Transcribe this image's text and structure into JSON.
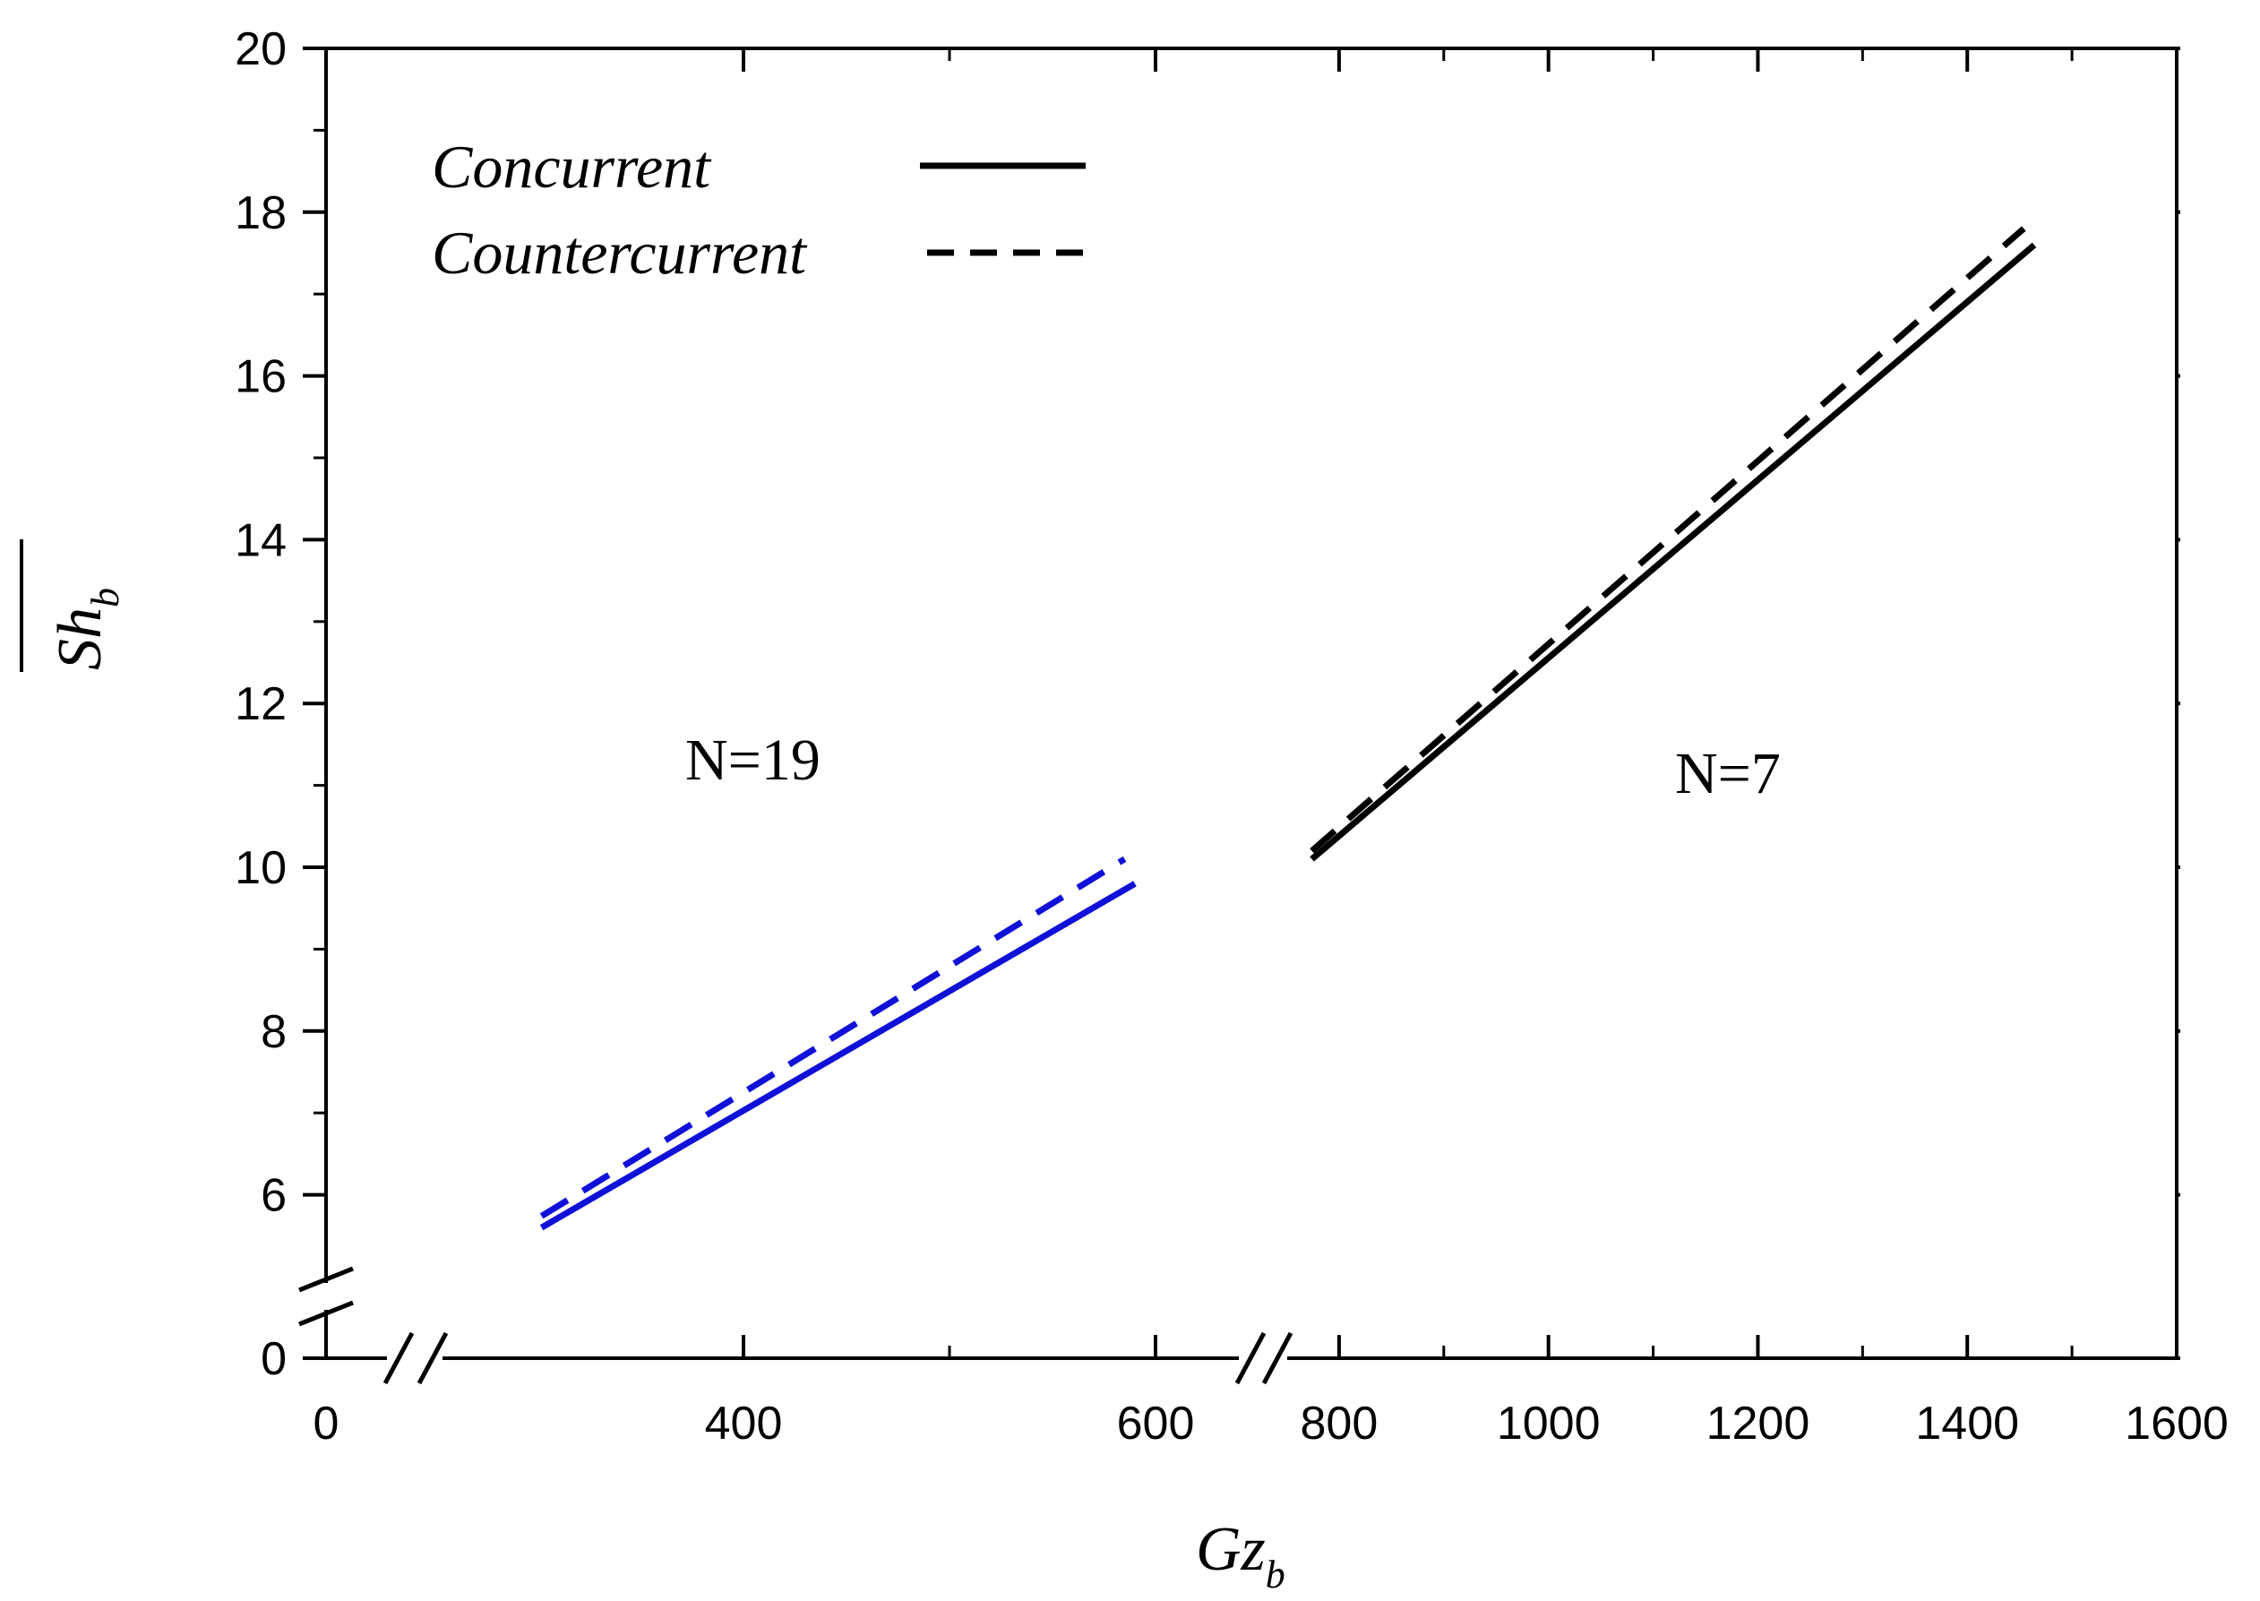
{
  "chart_data": {
    "type": "line",
    "title": "",
    "xlabel": {
      "main": "Gz",
      "sub": "b"
    },
    "ylabel": {
      "main": "Sh",
      "sub": "b",
      "overline": true
    },
    "x_axis": {
      "broken": true,
      "segments": [
        {
          "range": [
            0,
            0
          ],
          "ticks": [
            0
          ]
        },
        {
          "range": [
            300,
            600
          ],
          "ticks": [
            400,
            600
          ]
        },
        {
          "range": [
            700,
            1600
          ],
          "ticks": [
            800,
            1000,
            1200,
            1400,
            1600
          ]
        }
      ]
    },
    "y_axis": {
      "broken": true,
      "segments": [
        {
          "range": [
            0,
            0
          ],
          "ticks": [
            0
          ]
        },
        {
          "range": [
            5,
            20
          ],
          "ticks": [
            6,
            8,
            10,
            12,
            14,
            16,
            18,
            20
          ]
        }
      ]
    },
    "legend": {
      "position": "top-left",
      "entries": [
        {
          "label": "Concurrent",
          "style": "solid"
        },
        {
          "label": "Countercurrent",
          "style": "dashed"
        }
      ]
    },
    "annotations": [
      {
        "text": "N=19",
        "x": 420,
        "y": 11.4
      },
      {
        "text": "N=7",
        "x": 1180,
        "y": 11.2
      }
    ],
    "series": [
      {
        "name": "Concurrent",
        "group": "N=19",
        "style": "solid",
        "color": "#1010d8",
        "x": [
          302,
          590
        ],
        "y": [
          5.6,
          9.8
        ]
      },
      {
        "name": "Countercurrent",
        "group": "N=19",
        "style": "dashed",
        "color": "#1010d8",
        "x": [
          302,
          585
        ],
        "y": [
          5.74,
          10.1
        ]
      },
      {
        "name": "Concurrent",
        "group": "N=7",
        "style": "solid",
        "color": "#000000",
        "x": [
          774,
          1464
        ],
        "y": [
          10.1,
          17.6
        ]
      },
      {
        "name": "Countercurrent",
        "group": "N=7",
        "style": "dashed",
        "color": "#000000",
        "x": [
          774,
          1454
        ],
        "y": [
          10.2,
          17.8
        ]
      }
    ]
  }
}
